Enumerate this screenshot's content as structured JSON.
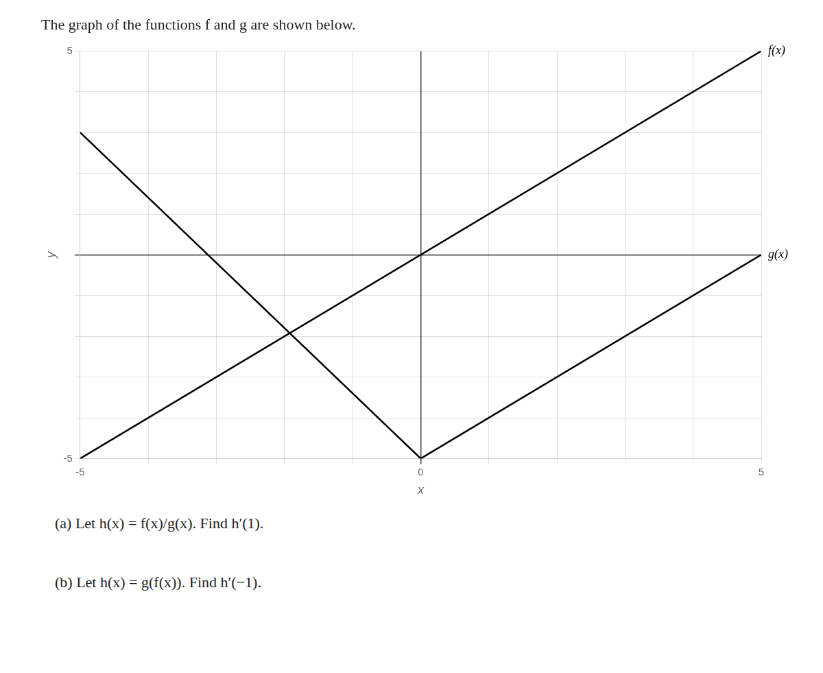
{
  "chart_data": {
    "type": "line",
    "title": "The graph of the functions f and g are shown below.",
    "x_label": "x",
    "y_label": "y",
    "series": [
      {
        "name": "f(x)",
        "color": "#000000",
        "x": [
          -5,
          5
        ],
        "values": [
          -5,
          5
        ]
      },
      {
        "name": "g(x)",
        "color": "#000000",
        "x": [
          -5,
          0,
          5
        ],
        "values": [
          3,
          -5,
          0
        ]
      }
    ],
    "xlim": [
      -5,
      5
    ],
    "ylim": [
      -5,
      5
    ],
    "xticks": [
      -5,
      {
        "value": -4,
        "label": null
      },
      {
        "value": -3,
        "label": null
      },
      {
        "value": -2,
        "label": null
      },
      {
        "value": -1,
        "label": null
      },
      0,
      {
        "value": 1,
        "label": null
      },
      {
        "value": 2,
        "label": null
      },
      {
        "value": 3,
        "label": null
      },
      {
        "value": 4,
        "label": null
      },
      5
    ],
    "yticks": [
      -5,
      {
        "value": -4,
        "label": null
      },
      {
        "value": -3,
        "label": null
      },
      {
        "value": -2,
        "label": null
      },
      {
        "value": -1,
        "label": null
      },
      {
        "value": 0,
        "label": null
      },
      {
        "value": 1,
        "label": null
      },
      {
        "value": 2,
        "label": null
      },
      {
        "value": 3,
        "label": null
      },
      {
        "value": 4,
        "label": null
      },
      5
    ],
    "grid": true,
    "annotations": [
      "(a) Let h(x) = f(x)/g(x). Find h′(1).",
      "(b) Let h(x) = g(f(x)). Find h′(−1)."
    ]
  }
}
